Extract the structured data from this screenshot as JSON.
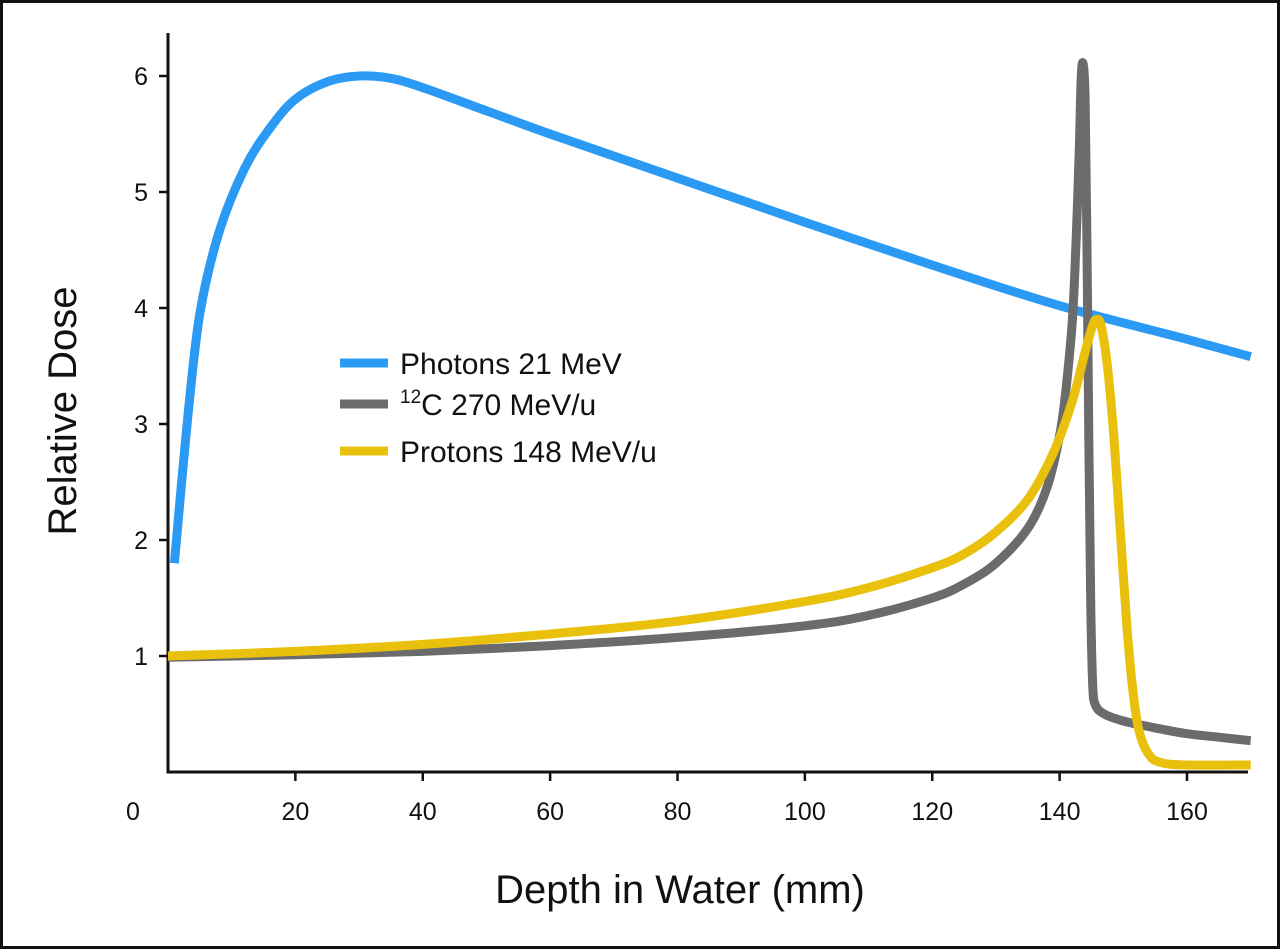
{
  "chart_data": {
    "type": "line",
    "title": "",
    "xlabel": "Depth in Water (mm)",
    "ylabel": "Relative Dose",
    "xlim": [
      0,
      170
    ],
    "ylim": [
      0,
      6.3
    ],
    "x_ticks": [
      "0",
      "20",
      "40",
      "60",
      "80",
      "100",
      "120",
      "140",
      "160"
    ],
    "x_tick_values": [
      0,
      20,
      40,
      60,
      80,
      100,
      120,
      140,
      160
    ],
    "y_ticks": [
      "1",
      "2",
      "3",
      "4",
      "5",
      "6"
    ],
    "y_tick_values": [
      1,
      2,
      3,
      4,
      5,
      6
    ],
    "grid": false,
    "legend_position": "center-left",
    "series": [
      {
        "name": "Photons 21 MeV",
        "legend_parts": {
          "sup": "",
          "text": "Photons 21 MeV"
        },
        "color": "#2a9af5",
        "points": [
          [
            1,
            1.8
          ],
          [
            3,
            3.0
          ],
          [
            5,
            3.95
          ],
          [
            8,
            4.65
          ],
          [
            12,
            5.2
          ],
          [
            16,
            5.55
          ],
          [
            20,
            5.8
          ],
          [
            25,
            5.95
          ],
          [
            30,
            6.0
          ],
          [
            35,
            5.98
          ],
          [
            40,
            5.9
          ],
          [
            50,
            5.7
          ],
          [
            60,
            5.5
          ],
          [
            80,
            5.12
          ],
          [
            100,
            4.74
          ],
          [
            120,
            4.37
          ],
          [
            140,
            4.02
          ],
          [
            160,
            3.73
          ],
          [
            170,
            3.58
          ]
        ]
      },
      {
        "name": "12C 270 MeV/u",
        "legend_parts": {
          "sup": "12",
          "text": "C 270 MeV/u"
        },
        "color": "#6b6b6b",
        "points": [
          [
            0,
            0.99
          ],
          [
            20,
            1.01
          ],
          [
            40,
            1.04
          ],
          [
            60,
            1.09
          ],
          [
            80,
            1.16
          ],
          [
            100,
            1.26
          ],
          [
            110,
            1.35
          ],
          [
            120,
            1.5
          ],
          [
            125,
            1.62
          ],
          [
            130,
            1.8
          ],
          [
            135,
            2.1
          ],
          [
            138,
            2.45
          ],
          [
            140,
            2.9
          ],
          [
            141,
            3.3
          ],
          [
            142,
            3.9
          ],
          [
            142.6,
            4.6
          ],
          [
            143.1,
            5.4
          ],
          [
            143.4,
            6.0
          ],
          [
            143.7,
            6.1
          ],
          [
            144.0,
            5.8
          ],
          [
            144.3,
            4.5
          ],
          [
            144.6,
            2.8
          ],
          [
            144.9,
            1.4
          ],
          [
            145.2,
            0.75
          ],
          [
            145.6,
            0.58
          ],
          [
            147,
            0.5
          ],
          [
            150,
            0.44
          ],
          [
            155,
            0.38
          ],
          [
            160,
            0.33
          ],
          [
            165,
            0.3
          ],
          [
            170,
            0.27
          ]
        ]
      },
      {
        "name": "Protons 148 MeV/u",
        "legend_parts": {
          "sup": "",
          "text": "Protons 148 MeV/u"
        },
        "color": "#e9c10c",
        "points": [
          [
            0,
            1.0
          ],
          [
            20,
            1.04
          ],
          [
            40,
            1.1
          ],
          [
            60,
            1.19
          ],
          [
            80,
            1.3
          ],
          [
            100,
            1.47
          ],
          [
            110,
            1.59
          ],
          [
            120,
            1.76
          ],
          [
            125,
            1.88
          ],
          [
            130,
            2.07
          ],
          [
            135,
            2.35
          ],
          [
            139,
            2.75
          ],
          [
            142,
            3.2
          ],
          [
            144,
            3.62
          ],
          [
            145.2,
            3.85
          ],
          [
            145.8,
            3.9
          ],
          [
            146.5,
            3.85
          ],
          [
            147.5,
            3.5
          ],
          [
            148.5,
            2.9
          ],
          [
            149.5,
            2.1
          ],
          [
            150.5,
            1.3
          ],
          [
            151.5,
            0.7
          ],
          [
            152.5,
            0.35
          ],
          [
            154,
            0.15
          ],
          [
            156,
            0.08
          ],
          [
            160,
            0.06
          ],
          [
            170,
            0.06
          ]
        ]
      }
    ]
  }
}
